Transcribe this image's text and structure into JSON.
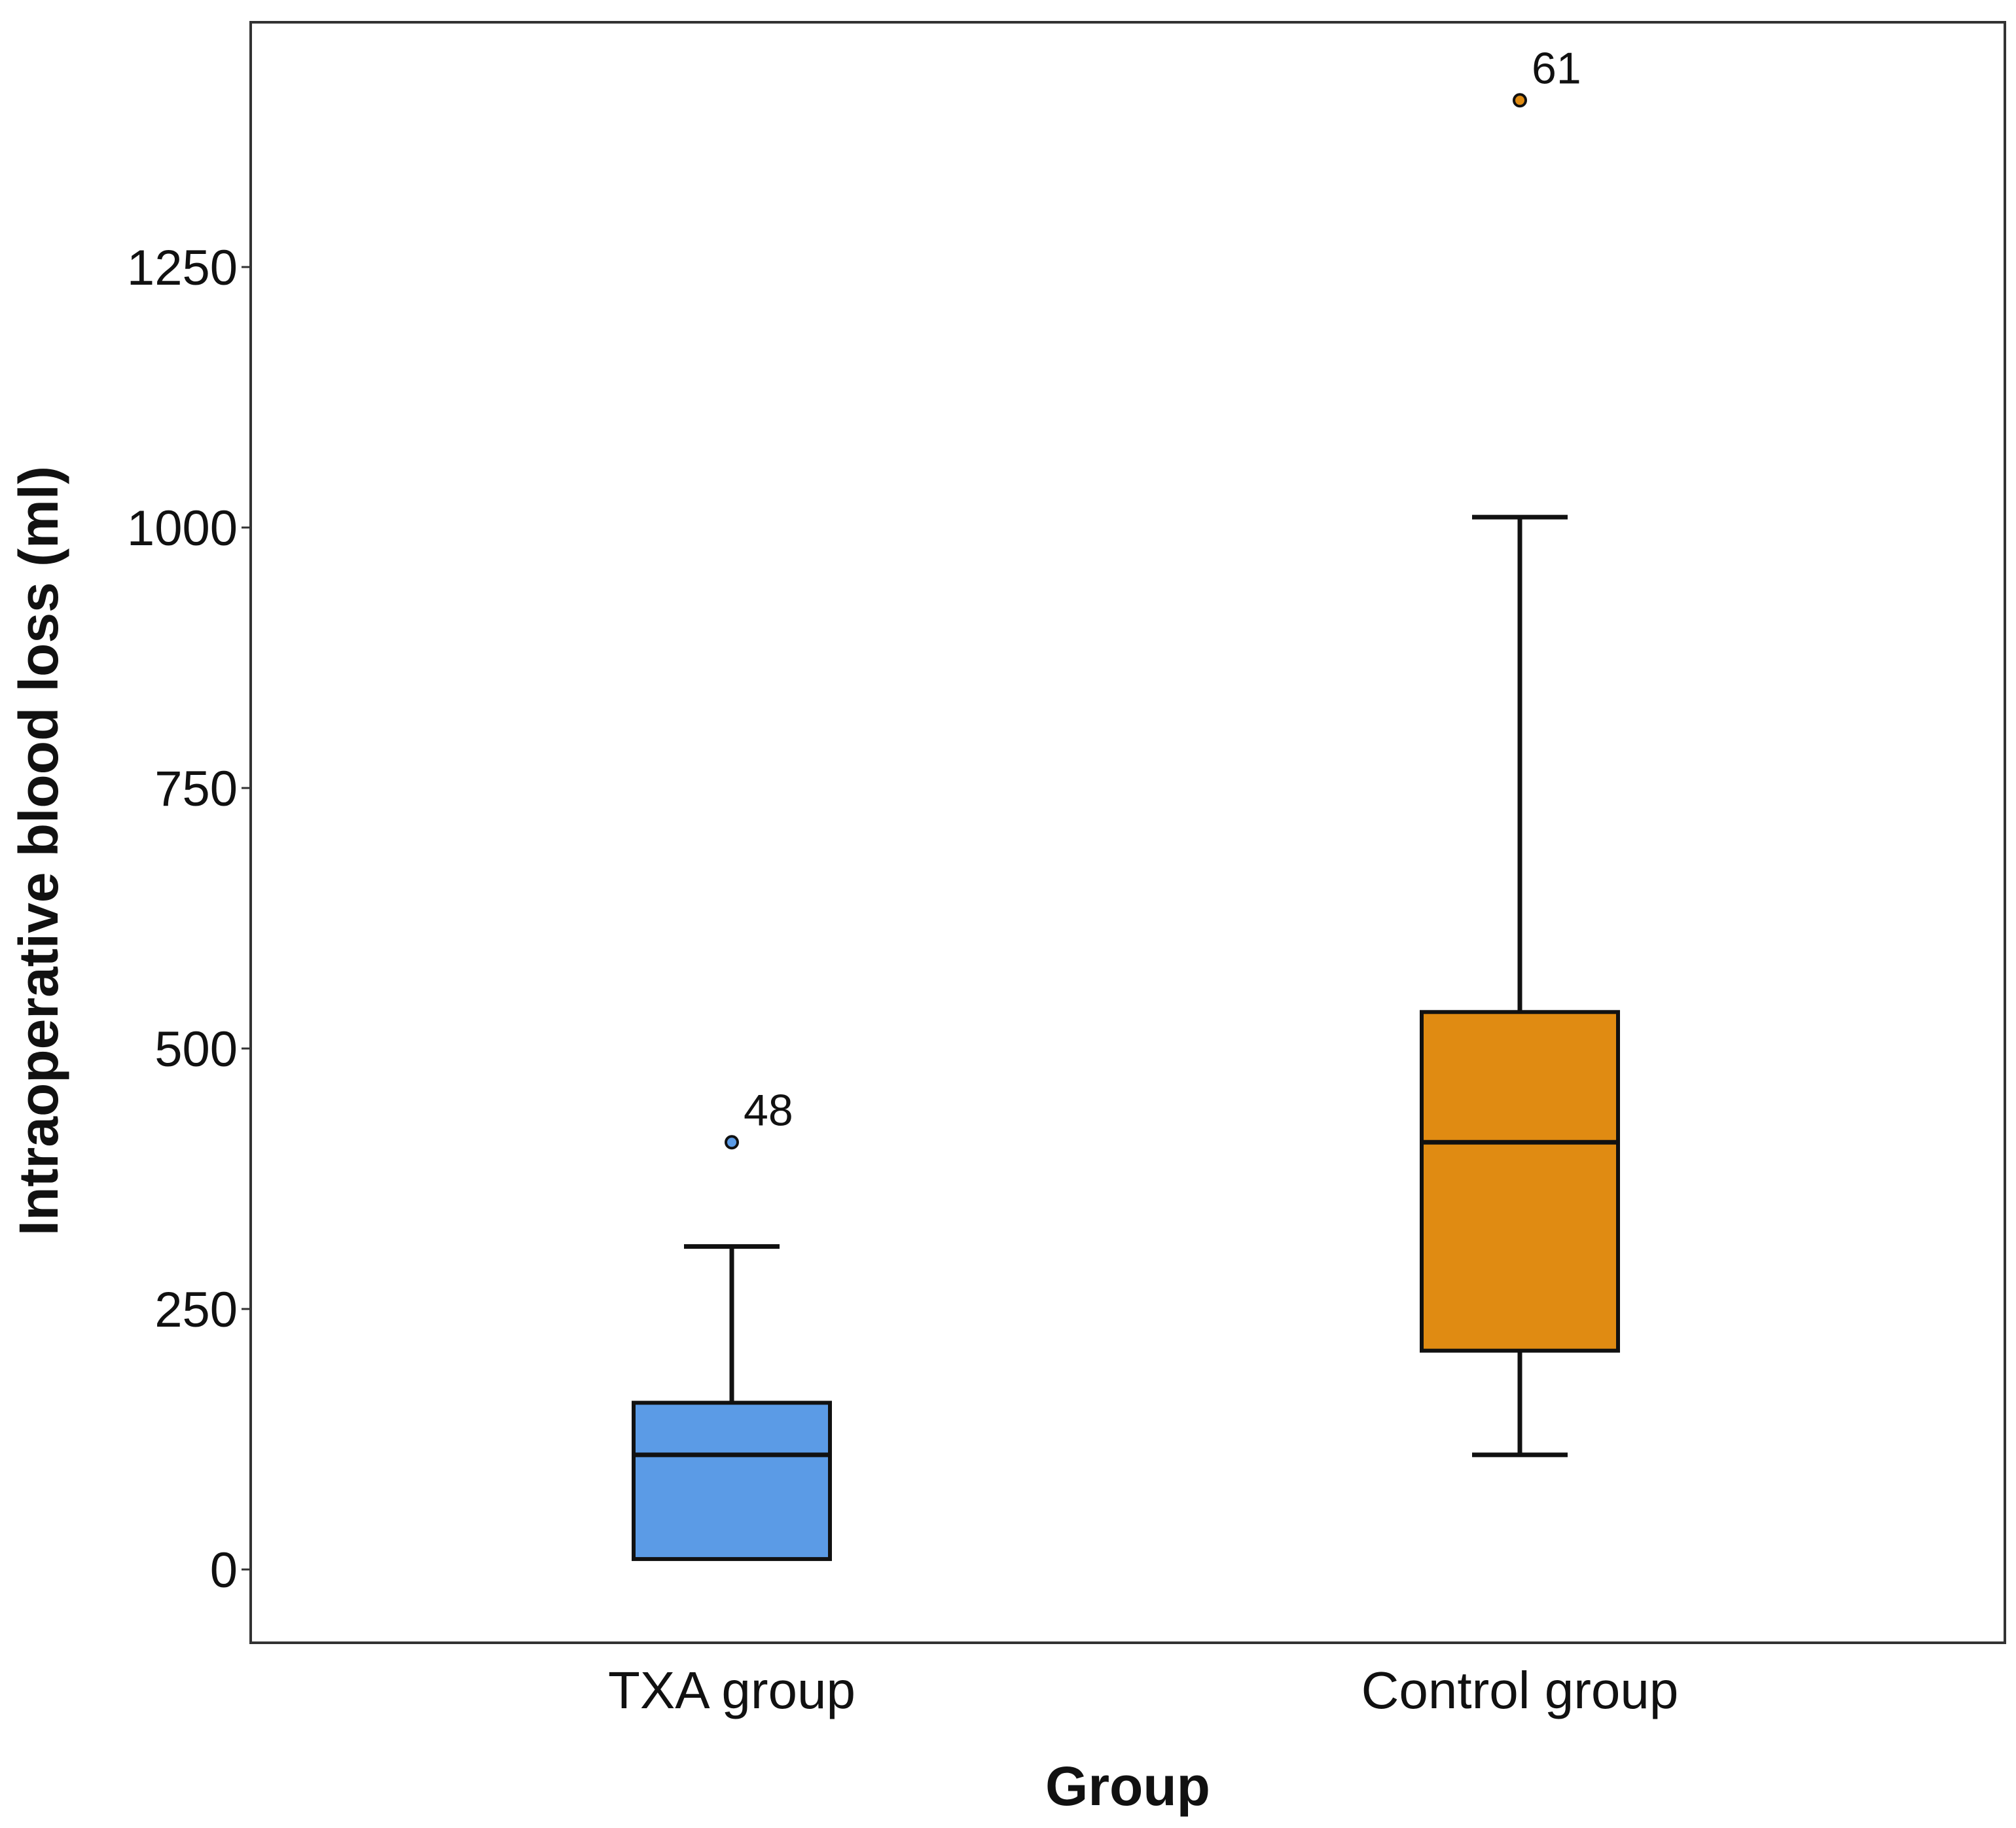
{
  "chart_data": {
    "type": "boxplot",
    "xlabel": "Group",
    "ylabel": "Intraoperative blood loss (ml)",
    "ylim": [
      -70,
      1550
    ],
    "yticks": [
      0,
      250,
      500,
      750,
      1000,
      1250
    ],
    "grid": false,
    "categories": [
      "TXA group",
      "Control group"
    ],
    "boxes": [
      {
        "name": "TXA group",
        "color": "#5b9be6",
        "whisker_low": 10,
        "q1": 10,
        "median": 110,
        "q3": 160,
        "whisker_high": 310,
        "outliers": [
          {
            "value": 410,
            "label": "48"
          }
        ]
      },
      {
        "name": "Control group",
        "color": "#e08b12",
        "whisker_low": 110,
        "q1": 210,
        "median": 410,
        "q3": 535,
        "whisker_high": 1010,
        "outliers": [
          {
            "value": 1410,
            "label": "61"
          }
        ]
      }
    ]
  }
}
